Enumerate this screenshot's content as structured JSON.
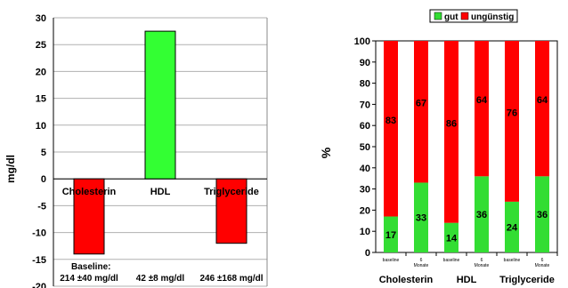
{
  "chart_data": [
    {
      "type": "bar",
      "ylabel": "mg/dl",
      "ylim": [
        -20,
        30
      ],
      "yticks": [
        30,
        25,
        20,
        15,
        10,
        5,
        0,
        -5,
        -10,
        -15,
        -20
      ],
      "categories": [
        "Cholesterin",
        "HDL",
        "Triglyceride"
      ],
      "values": [
        -14,
        27.5,
        -12
      ],
      "colors": [
        "#ff0000",
        "#33ff33",
        "#ff0000"
      ],
      "grid": true,
      "annotation": {
        "title": "Baseline:",
        "values": [
          "214 ±40 mg/dl",
          "42 ±8 mg/dl",
          "246 ±168 mg/dl"
        ]
      }
    },
    {
      "type": "bar",
      "stacked": true,
      "ylabel": "%",
      "ylim": [
        0,
        100
      ],
      "yticks": [
        100,
        90,
        80,
        70,
        60,
        50,
        40,
        30,
        20,
        10,
        0
      ],
      "legend": {
        "position": "top",
        "items": [
          {
            "name": "gut",
            "color": "#33dd33"
          },
          {
            "name": "ungünstig",
            "color": "#ff0000"
          }
        ]
      },
      "bars": [
        {
          "label": "baseline",
          "gut": 17,
          "unguenstig": 83
        },
        {
          "label": "6 Monate",
          "gut": 33,
          "unguenstig": 67
        },
        {
          "label": "baseline",
          "gut": 14,
          "unguenstig": 86
        },
        {
          "label": "6 Monate",
          "gut": 36,
          "unguenstig": 64
        },
        {
          "label": "baseline",
          "gut": 24,
          "unguenstig": 76
        },
        {
          "label": "6 Monate",
          "gut": 36,
          "unguenstig": 64
        }
      ],
      "groups": [
        "Cholesterin",
        "HDL",
        "Triglyceride"
      ],
      "colors": {
        "gut": "#33dd33",
        "unguenstig": "#ff0000"
      }
    }
  ]
}
